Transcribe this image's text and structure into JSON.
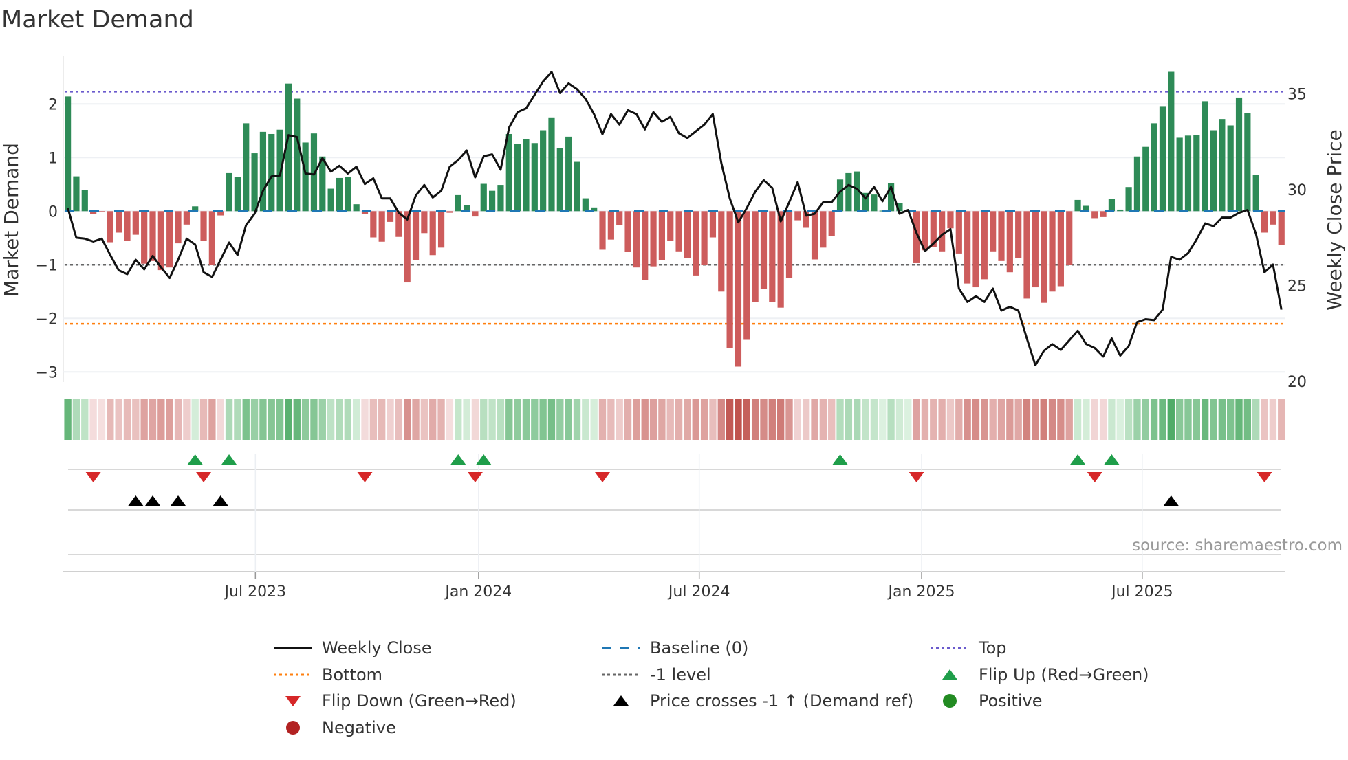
{
  "chart_data": {
    "type": "bar",
    "title": "Market Demand",
    "ylabel": "Market Demand",
    "y2label": "Weekly Close Price",
    "ylim": [
      -3.2,
      2.9
    ],
    "y2lim": [
      20,
      37
    ],
    "yticks": [
      -3,
      -2,
      -1,
      0,
      1,
      2
    ],
    "ytick_labels": [
      "−3",
      "−2",
      "−1",
      "0",
      "1",
      "2"
    ],
    "y2ticks": [
      20,
      25,
      30,
      35
    ],
    "y2tick_labels": [
      "20",
      "25",
      "30",
      "35"
    ],
    "x_unit": "week index",
    "xticks": [
      {
        "week": 22.1,
        "label": "Jul 2023"
      },
      {
        "week": 48.4,
        "label": "Jan 2024"
      },
      {
        "week": 74.4,
        "label": "Jul 2024"
      },
      {
        "week": 100.6,
        "label": "Jan 2025"
      },
      {
        "week": 126.6,
        "label": "Jul 2025"
      }
    ],
    "reference_lines": {
      "top": 2.23,
      "baseline": 0,
      "minus_one": -1,
      "bottom": -2.1
    },
    "series": [
      {
        "name": "Market Demand",
        "type": "bar",
        "axis": "left",
        "values": [
          2.14,
          0.65,
          0.39,
          -0.05,
          -0.02,
          -0.58,
          -0.4,
          -0.56,
          -0.44,
          -0.98,
          -0.93,
          -1.1,
          -1.05,
          -0.6,
          -0.25,
          0.09,
          -0.56,
          -1.0,
          -0.08,
          0.71,
          0.64,
          1.64,
          1.08,
          1.48,
          1.44,
          1.52,
          2.38,
          2.1,
          1.28,
          1.45,
          1.02,
          0.42,
          0.62,
          0.64,
          0.13,
          -0.06,
          -0.49,
          -0.57,
          -0.2,
          -0.48,
          -1.33,
          -0.91,
          -0.41,
          -0.82,
          -0.68,
          -0.03,
          0.3,
          0.11,
          -0.1,
          0.51,
          0.38,
          0.49,
          1.44,
          1.25,
          1.34,
          1.27,
          1.51,
          1.75,
          1.18,
          1.39,
          0.92,
          0.24,
          0.07,
          -0.72,
          -0.53,
          -0.26,
          -0.76,
          -1.05,
          -1.29,
          -1.03,
          -0.91,
          -0.55,
          -0.75,
          -0.87,
          -1.2,
          -1.0,
          -0.49,
          -1.5,
          -2.55,
          -2.9,
          -2.4,
          -1.7,
          -1.45,
          -1.7,
          -1.8,
          -1.24,
          -0.17,
          -0.31,
          -0.9,
          -0.68,
          -0.47,
          0.59,
          0.71,
          0.74,
          0.34,
          0.31,
          0.01,
          0.52,
          0.15,
          0.02,
          -0.97,
          -0.73,
          -0.67,
          -0.75,
          -0.32,
          -0.79,
          -1.35,
          -1.42,
          -1.27,
          -0.75,
          -0.93,
          -1.14,
          -0.88,
          -1.63,
          -1.42,
          -1.71,
          -1.5,
          -1.4,
          -1.0,
          0.21,
          0.1,
          -0.13,
          -0.11,
          0.23,
          0.03,
          0.45,
          1.02,
          1.2,
          1.64,
          1.96,
          2.6,
          1.37,
          1.41,
          1.42,
          2.05,
          1.51,
          1.72,
          1.6,
          2.12,
          1.83,
          0.68,
          -0.4,
          -0.25,
          -0.63
        ]
      },
      {
        "name": "Weekly Close",
        "type": "line",
        "axis": "right",
        "values": [
          29.0,
          27.45,
          27.4,
          27.25,
          27.4,
          26.55,
          25.75,
          25.55,
          26.3,
          25.8,
          26.5,
          25.9,
          25.35,
          26.3,
          27.4,
          27.1,
          25.65,
          25.4,
          26.3,
          27.2,
          26.55,
          28.1,
          28.7,
          29.9,
          30.65,
          30.7,
          32.8,
          32.7,
          30.8,
          30.75,
          31.6,
          30.9,
          31.2,
          30.8,
          31.15,
          30.25,
          30.55,
          29.5,
          29.5,
          28.75,
          28.4,
          29.65,
          30.2,
          29.55,
          29.9,
          31.15,
          31.5,
          32.0,
          30.6,
          31.7,
          31.8,
          31.0,
          33.2,
          34.0,
          34.2,
          34.9,
          35.6,
          36.1,
          35.0,
          35.5,
          35.2,
          34.7,
          33.9,
          32.85,
          33.9,
          33.35,
          34.1,
          33.9,
          33.1,
          34.0,
          33.5,
          33.75,
          32.9,
          32.65,
          33.0,
          33.35,
          33.9,
          31.35,
          29.5,
          28.25,
          29.0,
          29.85,
          30.45,
          30.05,
          28.3,
          29.3,
          30.35,
          28.6,
          28.7,
          29.3,
          29.3,
          29.85,
          30.2,
          30.0,
          29.5,
          30.1,
          29.35,
          30.1,
          28.7,
          28.9,
          27.7,
          26.75,
          27.15,
          27.6,
          27.9,
          24.8,
          24.1,
          24.4,
          24.1,
          24.8,
          23.65,
          23.85,
          23.65,
          22.2,
          20.8,
          21.55,
          21.9,
          21.6,
          22.1,
          22.6,
          21.9,
          21.7,
          21.25,
          22.2,
          21.3,
          21.8,
          23.05,
          23.2,
          23.15,
          23.7,
          26.45,
          26.3,
          26.65,
          27.35,
          28.2,
          28.05,
          28.5,
          28.5,
          28.75,
          28.9,
          27.65,
          25.65,
          26.05,
          23.7
        ]
      }
    ],
    "events": {
      "flip_up_weeks": [
        15,
        19,
        46,
        49,
        91,
        119,
        123
      ],
      "flip_down_weeks": [
        3,
        16,
        35,
        48,
        63,
        100,
        121,
        141
      ],
      "price_cross_weeks": [
        8,
        10,
        13,
        18,
        130
      ]
    },
    "legend": {
      "placement": "bottom",
      "items": [
        {
          "label": "Weekly Close",
          "symbol": "solid-line",
          "color": "#111111"
        },
        {
          "label": "Baseline (0)",
          "symbol": "dashed-line",
          "color": "#1f77b4"
        },
        {
          "label": "Top",
          "symbol": "dotted-line",
          "color": "#6a5acd"
        },
        {
          "label": "Bottom",
          "symbol": "dotted-line",
          "color": "#ff7f0e"
        },
        {
          "label": "-1 level",
          "symbol": "dotted-line",
          "color": "#666666"
        },
        {
          "label": "Flip Up (Red→Green)",
          "symbol": "triangle-up",
          "color": "#1f9e4a"
        },
        {
          "label": "Flip Down (Green→Red)",
          "symbol": "triangle-down",
          "color": "#d62728"
        },
        {
          "label": "Price crosses -1 ↑ (Demand ref)",
          "symbol": "triangle-up",
          "color": "#000000"
        },
        {
          "label": "Positive",
          "symbol": "circle",
          "color": "#228b22"
        },
        {
          "label": "Negative",
          "symbol": "circle",
          "color": "#b22222"
        }
      ]
    },
    "source": "source: sharemaestro.com",
    "colors": {
      "positive_bar": "#2e8b57",
      "negative_bar": "#cd5c5c",
      "grid": "#eceff3"
    }
  }
}
